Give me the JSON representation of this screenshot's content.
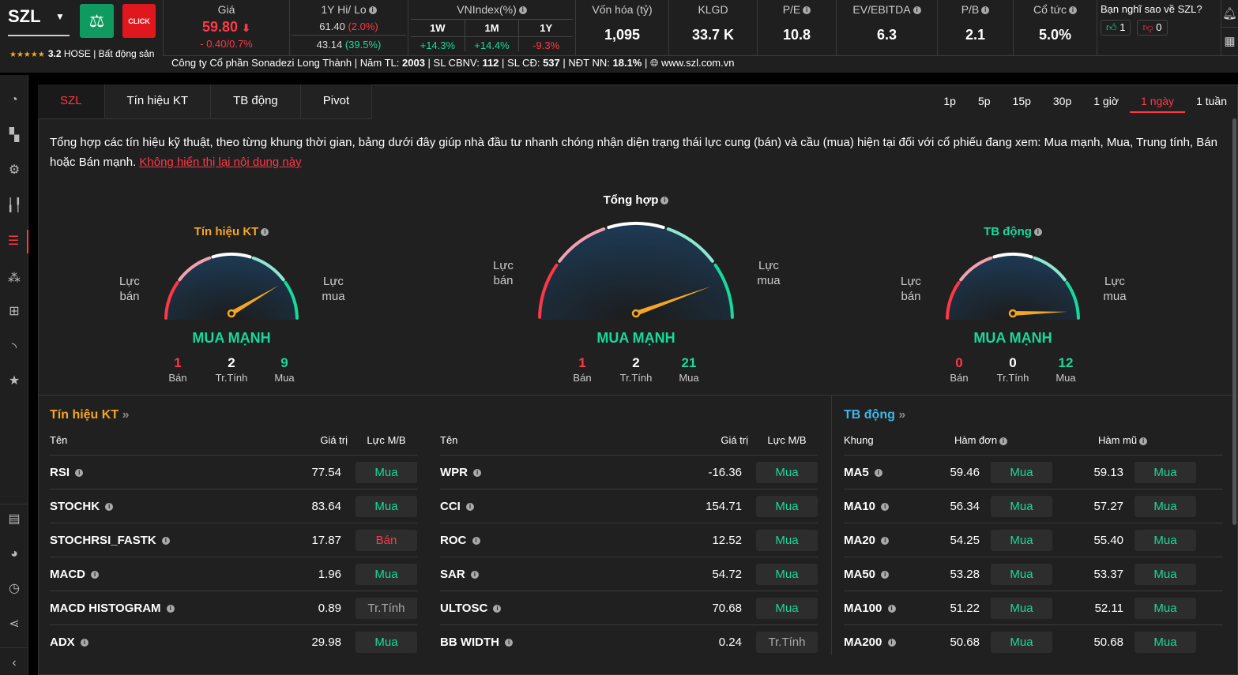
{
  "header": {
    "symbol": "SZL",
    "rating_stars": "★★★★★",
    "rating": "3.2",
    "exchange_sector": "HOSE | Bất động sản",
    "one_click": "CLICK",
    "price": {
      "label": "Giá",
      "value": "59.80",
      "arrow": "⬇",
      "change": "- 0.40/0.7%"
    },
    "hilo": {
      "label": "1Y Hi/ Lo",
      "hi": "61.40",
      "hi_pct": "(2.0%)",
      "lo": "43.14",
      "lo_pct": "(39.5%)"
    },
    "vnindex": {
      "label": "VNIndex(%)",
      "periods": [
        {
          "p": "1W",
          "v": "+14.3%"
        },
        {
          "p": "1M",
          "v": "+14.4%"
        },
        {
          "p": "1Y",
          "v": "-9.3%"
        }
      ]
    },
    "metrics": [
      {
        "label": "Vốn hóa (tỷ)",
        "value": "1,095"
      },
      {
        "label": "KLGD",
        "value": "33.7 K"
      },
      {
        "label": "P/E",
        "value": "10.8"
      },
      {
        "label": "EV/EBITDA",
        "value": "6.3"
      },
      {
        "label": "P/B",
        "value": "2.1"
      },
      {
        "label": "Cổ tức",
        "value": "5.0%"
      }
    ],
    "poll": {
      "question": "Bạn nghĩ sao về SZL?",
      "likes": "1",
      "dislikes": "0"
    },
    "company": {
      "name": "Công ty Cổ phần Sonadezi Long Thành",
      "year_label": "Năm TL:",
      "year": "2003",
      "staff_label": "SL CBNV:",
      "staff": "112",
      "sh_label": "SL CĐ:",
      "sh": "537",
      "foreign_label": "NĐT NN:",
      "foreign": "18.1%",
      "website": "www.szl.com.vn"
    }
  },
  "tabs": [
    {
      "label": "SZL"
    },
    {
      "label": "Tín hiệu KT"
    },
    {
      "label": "TB động"
    },
    {
      "label": "Pivot"
    }
  ],
  "timeframes": [
    "1p",
    "5p",
    "15p",
    "30p",
    "1 giờ",
    "1 ngày",
    "1 tuần"
  ],
  "active_timeframe": "1 ngày",
  "description": {
    "text": "Tổng hợp các tín hiệu kỹ thuật, theo từng khung thời gian, bảng dưới đây giúp nhà đầu tư nhanh chóng nhận diện trạng thái lực cung (bán) và cầu (mua) hiện tại đối với cổ phiếu đang xem: Mua mạnh, Mua, Trung tính, Bán hoặc Bán mạnh.",
    "hide_link": "Không hiển thị lại nội dung này"
  },
  "gauge_labels": {
    "sell": "Lực bán",
    "buy": "Lực mua",
    "sell_count": "Bán",
    "neutral_count": "Tr.Tính",
    "buy_count": "Mua"
  },
  "gauges": [
    {
      "title": "Tín hiệu KT",
      "verdict": "MUA MẠNH",
      "sell": "1",
      "neutral": "2",
      "buy": "9",
      "level": 0.83,
      "title_color": "#f5a623"
    },
    {
      "title": "Tổng hợp",
      "verdict": "MUA MẠNH",
      "sell": "1",
      "neutral": "2",
      "buy": "21",
      "level": 0.89,
      "title_color": "#ffffff"
    },
    {
      "title": "TB động",
      "verdict": "MUA MẠNH",
      "sell": "0",
      "neutral": "0",
      "buy": "12",
      "level": 0.99,
      "title_color": "#18d99b"
    }
  ],
  "tech": {
    "title": "Tín hiệu KT",
    "more": "»",
    "headers": {
      "name": "Tên",
      "value": "Giá trị",
      "force": "Lực M/B"
    },
    "left": [
      {
        "name": "RSI",
        "value": "77.54",
        "signal": "Mua"
      },
      {
        "name": "STOCHK",
        "value": "83.64",
        "signal": "Mua"
      },
      {
        "name": "STOCHRSI_FASTK",
        "value": "17.87",
        "signal": "Bán"
      },
      {
        "name": "MACD",
        "value": "1.96",
        "signal": "Mua"
      },
      {
        "name": "MACD HISTOGRAM",
        "value": "0.89",
        "signal": "Tr.Tính"
      },
      {
        "name": "ADX",
        "value": "29.98",
        "signal": "Mua"
      }
    ],
    "right": [
      {
        "name": "WPR",
        "value": "-16.36",
        "signal": "Mua"
      },
      {
        "name": "CCI",
        "value": "154.71",
        "signal": "Mua"
      },
      {
        "name": "ROC",
        "value": "12.52",
        "signal": "Mua"
      },
      {
        "name": "SAR",
        "value": "54.72",
        "signal": "Mua"
      },
      {
        "name": "ULTOSC",
        "value": "70.68",
        "signal": "Mua"
      },
      {
        "name": "BB WIDTH",
        "value": "0.24",
        "signal": "Tr.Tính"
      }
    ]
  },
  "ma": {
    "title": "TB động",
    "more": "»",
    "headers": {
      "frame": "Khung",
      "simple": "Hàm đơn",
      "exp": "Hàm mũ"
    },
    "rows": [
      {
        "name": "MA5",
        "simple": "59.46",
        "s_sig": "Mua",
        "exp": "59.13",
        "e_sig": "Mua"
      },
      {
        "name": "MA10",
        "simple": "56.34",
        "s_sig": "Mua",
        "exp": "57.27",
        "e_sig": "Mua"
      },
      {
        "name": "MA20",
        "simple": "54.25",
        "s_sig": "Mua",
        "exp": "55.40",
        "e_sig": "Mua"
      },
      {
        "name": "MA50",
        "simple": "53.28",
        "s_sig": "Mua",
        "exp": "53.37",
        "e_sig": "Mua"
      },
      {
        "name": "MA100",
        "simple": "51.22",
        "s_sig": "Mua",
        "exp": "52.11",
        "e_sig": "Mua"
      },
      {
        "name": "MA200",
        "simple": "50.68",
        "s_sig": "Mua",
        "exp": "50.68",
        "e_sig": "Mua"
      }
    ]
  },
  "colors": {
    "buy": "#18d99b",
    "sell": "#ff3747",
    "neutral": "#aaaaaa",
    "accent": "#f5a623"
  }
}
